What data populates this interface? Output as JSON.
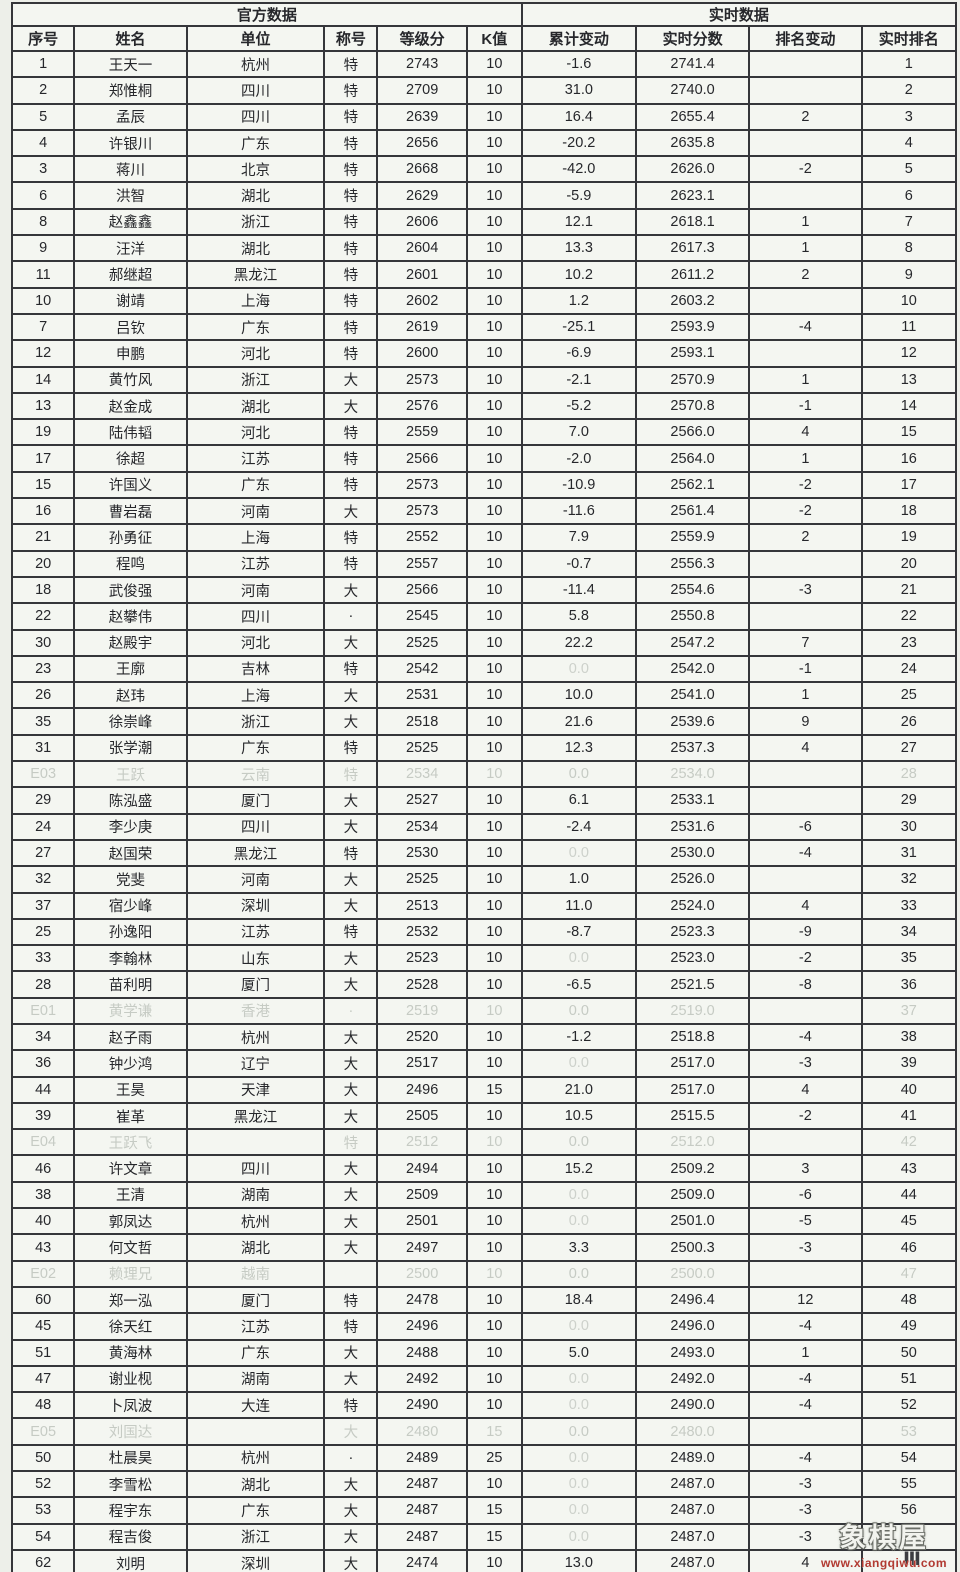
{
  "table": {
    "group_headers": [
      {
        "label": "官方数据",
        "span": 6
      },
      {
        "label": "实时数据",
        "span": 4
      }
    ],
    "columns": [
      "序号",
      "姓名",
      "单位",
      "称号",
      "等级分",
      "K值",
      "累计变动",
      "实时分数",
      "排名变动",
      "实时排名"
    ],
    "rows": [
      {
        "cells": [
          "1",
          "王天一",
          "杭州",
          "特",
          "2743",
          "10",
          "-1.6",
          "2741.4",
          "",
          "1"
        ],
        "faded": false,
        "faint_change": false
      },
      {
        "cells": [
          "2",
          "郑惟桐",
          "四川",
          "特",
          "2709",
          "10",
          "31.0",
          "2740.0",
          "",
          "2"
        ],
        "faded": false,
        "faint_change": false
      },
      {
        "cells": [
          "5",
          "孟辰",
          "四川",
          "特",
          "2639",
          "10",
          "16.4",
          "2655.4",
          "2",
          "3"
        ],
        "faded": false,
        "faint_change": false
      },
      {
        "cells": [
          "4",
          "许银川",
          "广东",
          "特",
          "2656",
          "10",
          "-20.2",
          "2635.8",
          "",
          "4"
        ],
        "faded": false,
        "faint_change": false
      },
      {
        "cells": [
          "3",
          "蒋川",
          "北京",
          "特",
          "2668",
          "10",
          "-42.0",
          "2626.0",
          "-2",
          "5"
        ],
        "faded": false,
        "faint_change": false
      },
      {
        "cells": [
          "6",
          "洪智",
          "湖北",
          "特",
          "2629",
          "10",
          "-5.9",
          "2623.1",
          "",
          "6"
        ],
        "faded": false,
        "faint_change": false
      },
      {
        "cells": [
          "8",
          "赵鑫鑫",
          "浙江",
          "特",
          "2606",
          "10",
          "12.1",
          "2618.1",
          "1",
          "7"
        ],
        "faded": false,
        "faint_change": false
      },
      {
        "cells": [
          "9",
          "汪洋",
          "湖北",
          "特",
          "2604",
          "10",
          "13.3",
          "2617.3",
          "1",
          "8"
        ],
        "faded": false,
        "faint_change": false
      },
      {
        "cells": [
          "11",
          "郝继超",
          "黑龙江",
          "特",
          "2601",
          "10",
          "10.2",
          "2611.2",
          "2",
          "9"
        ],
        "faded": false,
        "faint_change": false
      },
      {
        "cells": [
          "10",
          "谢靖",
          "上海",
          "特",
          "2602",
          "10",
          "1.2",
          "2603.2",
          "",
          "10"
        ],
        "faded": false,
        "faint_change": false
      },
      {
        "cells": [
          "7",
          "吕钦",
          "广东",
          "特",
          "2619",
          "10",
          "-25.1",
          "2593.9",
          "-4",
          "11"
        ],
        "faded": false,
        "faint_change": false
      },
      {
        "cells": [
          "12",
          "申鹏",
          "河北",
          "特",
          "2600",
          "10",
          "-6.9",
          "2593.1",
          "",
          "12"
        ],
        "faded": false,
        "faint_change": false
      },
      {
        "cells": [
          "14",
          "黄竹风",
          "浙江",
          "大",
          "2573",
          "10",
          "-2.1",
          "2570.9",
          "1",
          "13"
        ],
        "faded": false,
        "faint_change": false
      },
      {
        "cells": [
          "13",
          "赵金成",
          "湖北",
          "大",
          "2576",
          "10",
          "-5.2",
          "2570.8",
          "-1",
          "14"
        ],
        "faded": false,
        "faint_change": false
      },
      {
        "cells": [
          "19",
          "陆伟韬",
          "河北",
          "特",
          "2559",
          "10",
          "7.0",
          "2566.0",
          "4",
          "15"
        ],
        "faded": false,
        "faint_change": false
      },
      {
        "cells": [
          "17",
          "徐超",
          "江苏",
          "特",
          "2566",
          "10",
          "-2.0",
          "2564.0",
          "1",
          "16"
        ],
        "faded": false,
        "faint_change": false
      },
      {
        "cells": [
          "15",
          "许国义",
          "广东",
          "特",
          "2573",
          "10",
          "-10.9",
          "2562.1",
          "-2",
          "17"
        ],
        "faded": false,
        "faint_change": false
      },
      {
        "cells": [
          "16",
          "曹岩磊",
          "河南",
          "大",
          "2573",
          "10",
          "-11.6",
          "2561.4",
          "-2",
          "18"
        ],
        "faded": false,
        "faint_change": false
      },
      {
        "cells": [
          "21",
          "孙勇征",
          "上海",
          "特",
          "2552",
          "10",
          "7.9",
          "2559.9",
          "2",
          "19"
        ],
        "faded": false,
        "faint_change": false
      },
      {
        "cells": [
          "20",
          "程鸣",
          "江苏",
          "特",
          "2557",
          "10",
          "-0.7",
          "2556.3",
          "",
          "20"
        ],
        "faded": false,
        "faint_change": false
      },
      {
        "cells": [
          "18",
          "武俊强",
          "河南",
          "大",
          "2566",
          "10",
          "-11.4",
          "2554.6",
          "-3",
          "21"
        ],
        "faded": false,
        "faint_change": false
      },
      {
        "cells": [
          "22",
          "赵攀伟",
          "四川",
          "·",
          "2545",
          "10",
          "5.8",
          "2550.8",
          "",
          "22"
        ],
        "faded": false,
        "faint_change": false
      },
      {
        "cells": [
          "30",
          "赵殿宇",
          "河北",
          "大",
          "2525",
          "10",
          "22.2",
          "2547.2",
          "7",
          "23"
        ],
        "faded": false,
        "faint_change": false
      },
      {
        "cells": [
          "23",
          "王廓",
          "吉林",
          "特",
          "2542",
          "10",
          "0.0",
          "2542.0",
          "-1",
          "24"
        ],
        "faded": false,
        "faint_change": true
      },
      {
        "cells": [
          "26",
          "赵玮",
          "上海",
          "大",
          "2531",
          "10",
          "10.0",
          "2541.0",
          "1",
          "25"
        ],
        "faded": false,
        "faint_change": false
      },
      {
        "cells": [
          "35",
          "徐崇峰",
          "浙江",
          "大",
          "2518",
          "10",
          "21.6",
          "2539.6",
          "9",
          "26"
        ],
        "faded": false,
        "faint_change": false
      },
      {
        "cells": [
          "31",
          "张学潮",
          "广东",
          "特",
          "2525",
          "10",
          "12.3",
          "2537.3",
          "4",
          "27"
        ],
        "faded": false,
        "faint_change": false
      },
      {
        "cells": [
          "E03",
          "王跃",
          "云南",
          "特",
          "2534",
          "10",
          "0.0",
          "2534.0",
          "",
          "28"
        ],
        "faded": true,
        "faint_change": false
      },
      {
        "cells": [
          "29",
          "陈泓盛",
          "厦门",
          "大",
          "2527",
          "10",
          "6.1",
          "2533.1",
          "",
          "29"
        ],
        "faded": false,
        "faint_change": false
      },
      {
        "cells": [
          "24",
          "李少庚",
          "四川",
          "大",
          "2534",
          "10",
          "-2.4",
          "2531.6",
          "-6",
          "30"
        ],
        "faded": false,
        "faint_change": false
      },
      {
        "cells": [
          "27",
          "赵国荣",
          "黑龙江",
          "特",
          "2530",
          "10",
          "0.0",
          "2530.0",
          "-4",
          "31"
        ],
        "faded": false,
        "faint_change": true
      },
      {
        "cells": [
          "32",
          "党斐",
          "河南",
          "大",
          "2525",
          "10",
          "1.0",
          "2526.0",
          "",
          "32"
        ],
        "faded": false,
        "faint_change": false
      },
      {
        "cells": [
          "37",
          "宿少峰",
          "深圳",
          "大",
          "2513",
          "10",
          "11.0",
          "2524.0",
          "4",
          "33"
        ],
        "faded": false,
        "faint_change": false
      },
      {
        "cells": [
          "25",
          "孙逸阳",
          "江苏",
          "特",
          "2532",
          "10",
          "-8.7",
          "2523.3",
          "-9",
          "34"
        ],
        "faded": false,
        "faint_change": false
      },
      {
        "cells": [
          "33",
          "李翰林",
          "山东",
          "大",
          "2523",
          "10",
          "0.0",
          "2523.0",
          "-2",
          "35"
        ],
        "faded": false,
        "faint_change": true
      },
      {
        "cells": [
          "28",
          "苗利明",
          "厦门",
          "大",
          "2528",
          "10",
          "-6.5",
          "2521.5",
          "-8",
          "36"
        ],
        "faded": false,
        "faint_change": false
      },
      {
        "cells": [
          "E01",
          "黄学谦",
          "香港",
          "·",
          "2519",
          "10",
          "0.0",
          "2519.0",
          "",
          "37"
        ],
        "faded": true,
        "faint_change": false
      },
      {
        "cells": [
          "34",
          "赵子雨",
          "杭州",
          "大",
          "2520",
          "10",
          "-1.2",
          "2518.8",
          "-4",
          "38"
        ],
        "faded": false,
        "faint_change": false
      },
      {
        "cells": [
          "36",
          "钟少鸿",
          "辽宁",
          "大",
          "2517",
          "10",
          "0.0",
          "2517.0",
          "-3",
          "39"
        ],
        "faded": false,
        "faint_change": true
      },
      {
        "cells": [
          "44",
          "王昊",
          "天津",
          "大",
          "2496",
          "15",
          "21.0",
          "2517.0",
          "4",
          "40"
        ],
        "faded": false,
        "faint_change": false
      },
      {
        "cells": [
          "39",
          "崔革",
          "黑龙江",
          "大",
          "2505",
          "10",
          "10.5",
          "2515.5",
          "-2",
          "41"
        ],
        "faded": false,
        "faint_change": false
      },
      {
        "cells": [
          "E04",
          "王跃飞",
          "",
          "特",
          "2512",
          "10",
          "0.0",
          "2512.0",
          "",
          "42"
        ],
        "faded": true,
        "faint_change": false
      },
      {
        "cells": [
          "46",
          "许文章",
          "四川",
          "大",
          "2494",
          "10",
          "15.2",
          "2509.2",
          "3",
          "43"
        ],
        "faded": false,
        "faint_change": false
      },
      {
        "cells": [
          "38",
          "王清",
          "湖南",
          "大",
          "2509",
          "10",
          "0.0",
          "2509.0",
          "-6",
          "44"
        ],
        "faded": false,
        "faint_change": true
      },
      {
        "cells": [
          "40",
          "郭凤达",
          "杭州",
          "大",
          "2501",
          "10",
          "0.0",
          "2501.0",
          "-5",
          "45"
        ],
        "faded": false,
        "faint_change": true
      },
      {
        "cells": [
          "43",
          "何文哲",
          "湖北",
          "大",
          "2497",
          "10",
          "3.3",
          "2500.3",
          "-3",
          "46"
        ],
        "faded": false,
        "faint_change": false
      },
      {
        "cells": [
          "E02",
          "赖理兄",
          "越南",
          "",
          "2500",
          "10",
          "0.0",
          "2500.0",
          "",
          "47"
        ],
        "faded": true,
        "faint_change": false
      },
      {
        "cells": [
          "60",
          "郑一泓",
          "厦门",
          "特",
          "2478",
          "10",
          "18.4",
          "2496.4",
          "12",
          "48"
        ],
        "faded": false,
        "faint_change": false
      },
      {
        "cells": [
          "45",
          "徐天红",
          "江苏",
          "特",
          "2496",
          "10",
          "0.0",
          "2496.0",
          "-4",
          "49"
        ],
        "faded": false,
        "faint_change": true
      },
      {
        "cells": [
          "51",
          "黄海林",
          "广东",
          "大",
          "2488",
          "10",
          "5.0",
          "2493.0",
          "1",
          "50"
        ],
        "faded": false,
        "faint_change": false
      },
      {
        "cells": [
          "47",
          "谢业枧",
          "湖南",
          "大",
          "2492",
          "10",
          "0.0",
          "2492.0",
          "-4",
          "51"
        ],
        "faded": false,
        "faint_change": true
      },
      {
        "cells": [
          "48",
          "卜凤波",
          "大连",
          "特",
          "2490",
          "10",
          "0.0",
          "2490.0",
          "-4",
          "52"
        ],
        "faded": false,
        "faint_change": true
      },
      {
        "cells": [
          "E05",
          "刘国达",
          "",
          "大",
          "2480",
          "15",
          "0.0",
          "2480.0",
          "",
          "53"
        ],
        "faded": true,
        "faint_change": false
      },
      {
        "cells": [
          "50",
          "杜晨昊",
          "杭州",
          "·",
          "2489",
          "25",
          "0.0",
          "2489.0",
          "-4",
          "54"
        ],
        "faded": false,
        "faint_change": true
      },
      {
        "cells": [
          "52",
          "李雪松",
          "湖北",
          "大",
          "2487",
          "10",
          "0.0",
          "2487.0",
          "-3",
          "55"
        ],
        "faded": false,
        "faint_change": true
      },
      {
        "cells": [
          "53",
          "程宇东",
          "广东",
          "大",
          "2487",
          "15",
          "0.0",
          "2487.0",
          "-3",
          "56"
        ],
        "faded": false,
        "faint_change": true
      },
      {
        "cells": [
          "54",
          "程吉俊",
          "浙江",
          "大",
          "2487",
          "15",
          "0.0",
          "2487.0",
          "-3",
          ""
        ],
        "faded": false,
        "faint_change": true
      },
      {
        "cells": [
          "62",
          "刘明",
          "深圳",
          "大",
          "2474",
          "10",
          "13.0",
          "2487.0",
          "4",
          ""
        ],
        "faded": false,
        "faint_change": false
      }
    ]
  },
  "watermark": {
    "title": "象棋屋",
    "url": "www.xiangqiwu.com",
    "artifact": "Ⅲ"
  },
  "colors": {
    "background": "#edefe9",
    "paper": "#f4f6f1",
    "grid_border": "#35363a",
    "text": "#26272b",
    "faded_text": "#c6cbc4",
    "faint_value": "#cdd1cb",
    "watermark_red": "#b23a31",
    "watermark_white": "#f2f3ee"
  }
}
